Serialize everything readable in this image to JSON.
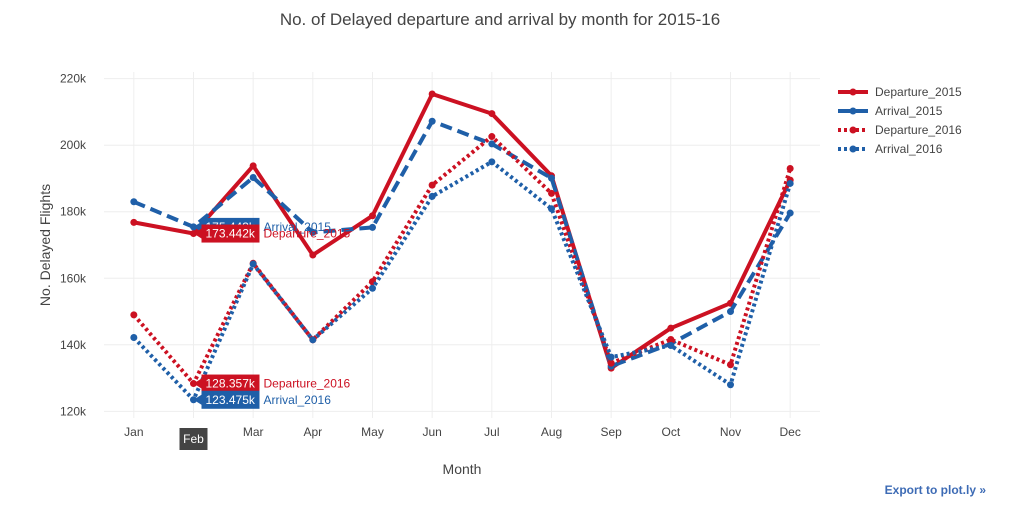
{
  "chart_data": {
    "type": "line",
    "title": "No. of Delayed departure and arrival by month for 2015-16",
    "xlabel": "Month",
    "ylabel": "No. Delayed Flights",
    "categories": [
      "Jan",
      "Feb",
      "Mar",
      "Apr",
      "May",
      "Jun",
      "Jul",
      "Aug",
      "Sep",
      "Oct",
      "Nov",
      "Dec"
    ],
    "ylim": [
      118000,
      222000
    ],
    "yticks": [
      120000,
      140000,
      160000,
      180000,
      200000,
      220000
    ],
    "ytick_labels": [
      "120k",
      "140k",
      "160k",
      "180k",
      "200k",
      "220k"
    ],
    "grid": true,
    "legend_position": "top-right",
    "series": [
      {
        "name": "Departure_2015",
        "color": "#cc1122",
        "dash": "solid",
        "values": [
          176800,
          173442,
          193800,
          167000,
          178800,
          215400,
          209500,
          190800,
          133000,
          145000,
          152500,
          189500
        ]
      },
      {
        "name": "Arrival_2015",
        "color": "#1f5fa8",
        "dash": "dash",
        "values": [
          183000,
          175443,
          190300,
          173800,
          175300,
          207200,
          200400,
          190100,
          133600,
          140300,
          150000,
          179600
        ]
      },
      {
        "name": "Departure_2016",
        "color": "#cc1122",
        "dash": "dot",
        "values": [
          149000,
          128357,
          164500,
          141500,
          159000,
          188000,
          202600,
          185500,
          134500,
          141600,
          134000,
          193000
        ]
      },
      {
        "name": "Arrival_2016",
        "color": "#1f5fa8",
        "dash": "dot",
        "values": [
          142200,
          123475,
          164300,
          141500,
          157000,
          184600,
          195000,
          180900,
          136300,
          139800,
          128000,
          188500
        ]
      }
    ],
    "hover": {
      "category": "Feb",
      "labels": [
        {
          "series": "Arrival_2015",
          "value_text": "175.443k"
        },
        {
          "series": "Departure_2015",
          "value_text": "173.442k"
        },
        {
          "series": "Departure_2016",
          "value_text": "128.357k"
        },
        {
          "series": "Arrival_2016",
          "value_text": "123.475k"
        }
      ]
    }
  },
  "export_link": "Export to plot.ly »"
}
